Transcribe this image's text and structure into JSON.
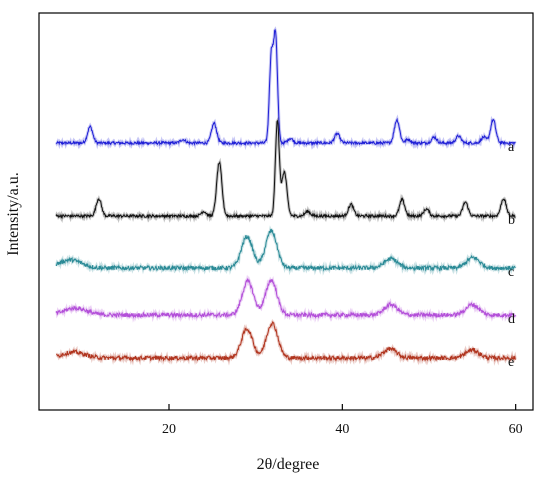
{
  "chart_data": {
    "type": "line",
    "title": "",
    "xlabel": "2θ/degree",
    "ylabel": "Intensity/a.u.",
    "xlim": [
      5,
      62
    ],
    "x_ticks": [
      20,
      40,
      60
    ],
    "y_ticks_shown": false,
    "grid": false,
    "legend": "series labels at right end of each trace",
    "y_units": "relative intensity above each trace baseline (vertically offset stacked patterns)",
    "series": [
      {
        "name": "a",
        "color": "#1f1fd6",
        "peaks": [
          [
            10.9,
            14
          ],
          [
            21.6,
            3
          ],
          [
            25.2,
            17
          ],
          [
            31.8,
            74
          ],
          [
            32.3,
            91
          ],
          [
            34.0,
            4
          ],
          [
            39.4,
            8
          ],
          [
            46.3,
            20
          ],
          [
            47.6,
            3
          ],
          [
            50.6,
            5
          ],
          [
            53.4,
            6
          ],
          [
            56.3,
            5
          ],
          [
            57.4,
            20
          ]
        ]
      },
      {
        "name": "b",
        "color": "#111111",
        "peaks": [
          [
            11.9,
            15
          ],
          [
            24.0,
            4
          ],
          [
            25.8,
            46
          ],
          [
            32.5,
            82
          ],
          [
            33.3,
            38
          ],
          [
            36.0,
            4
          ],
          [
            41.0,
            10
          ],
          [
            46.9,
            14
          ],
          [
            49.7,
            6
          ],
          [
            54.2,
            12
          ],
          [
            58.6,
            15
          ]
        ]
      },
      {
        "name": "c",
        "color": "#2a8a96",
        "peaks": [
          [
            8.6,
            7
          ],
          [
            29.0,
            27
          ],
          [
            31.8,
            32
          ],
          [
            45.6,
            8
          ],
          [
            55.1,
            9
          ]
        ]
      },
      {
        "name": "d",
        "color": "#b34fd9",
        "peaks": [
          [
            9.2,
            6
          ],
          [
            29.1,
            29
          ],
          [
            31.8,
            30
          ],
          [
            45.6,
            9
          ],
          [
            55.0,
            9
          ]
        ]
      },
      {
        "name": "e",
        "color": "#b0341e",
        "peaks": [
          [
            9.0,
            5
          ],
          [
            29.0,
            25
          ],
          [
            31.9,
            30
          ],
          [
            45.5,
            8
          ],
          [
            55.0,
            7
          ]
        ]
      }
    ]
  }
}
